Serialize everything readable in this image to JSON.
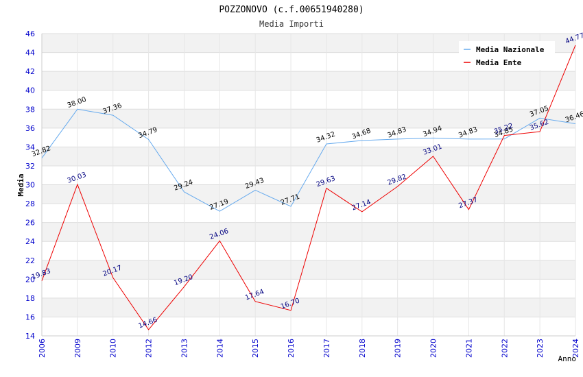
{
  "chart_data": {
    "type": "line",
    "title": "POZZONOVO (c.f.00651940280)",
    "subtitle": "Media Importi",
    "xlabel": "Anno",
    "ylabel": "Media",
    "ylim": [
      14,
      46
    ],
    "ytick_step": 2,
    "grid": true,
    "legend_position": "top-right",
    "categories": [
      "2006",
      "2009",
      "2010",
      "2012",
      "2013",
      "2014",
      "2015",
      "2016",
      "2017",
      "2018",
      "2019",
      "2020",
      "2021",
      "2022",
      "2023",
      "2024"
    ],
    "series": [
      {
        "name": "Media Nazionale",
        "color": "#66aaee",
        "label_color": "#000000",
        "values": [
          32.82,
          38.0,
          37.36,
          34.79,
          29.24,
          27.19,
          29.43,
          27.71,
          34.32,
          34.68,
          34.83,
          34.94,
          34.83,
          34.85,
          37.05,
          36.46
        ],
        "labels": [
          "32.82",
          "38.00",
          "37.36",
          "34.79",
          "29.24",
          "27.19",
          "29.43",
          "27.71",
          "34.32",
          "34.68",
          "34.83",
          "34.94",
          "34.83",
          "34.85",
          "37.05",
          "36.46"
        ]
      },
      {
        "name": "Media Ente",
        "color": "#ee0000",
        "label_color": "#000080",
        "values": [
          19.83,
          30.03,
          20.17,
          14.66,
          19.2,
          24.06,
          17.64,
          16.7,
          29.63,
          27.14,
          29.82,
          33.01,
          27.37,
          35.22,
          35.62,
          44.77
        ],
        "labels": [
          "19.83",
          "30.03",
          "20.17",
          "14.66",
          "19.20",
          "24.06",
          "17.64",
          "16.70",
          "29.63",
          "27.14",
          "29.82",
          "33.01",
          "27.37",
          "35.22",
          "35.62",
          "44.77"
        ]
      }
    ]
  }
}
